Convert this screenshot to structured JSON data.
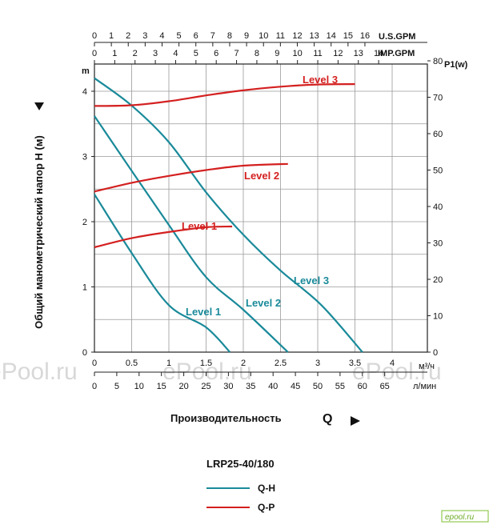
{
  "chart_data": {
    "type": "line",
    "title": "LRP25-40/180",
    "ylabel": "Общий манометрический напор Н (м)",
    "ylabel_unit": "m",
    "y2label": "P1(w)",
    "xlabel": "Производительность",
    "xlabel_symbol": "Q",
    "x_unit_bottom1": "м³/ч",
    "x_unit_bottom2": "л/мин",
    "x_unit_top1": "U.S.GPM",
    "x_unit_top2": "IMP.GPM",
    "xlim": [
      0,
      4.5
    ],
    "ylim": [
      0,
      4.25
    ],
    "y2lim": [
      0,
      80
    ],
    "grid": true,
    "ticks": {
      "m3h": [
        "0",
        "0.5",
        "1",
        "1.5",
        "2",
        "2.5",
        "3",
        "3.5",
        "4"
      ],
      "m3h_values": [
        0,
        0.5,
        1,
        1.5,
        2,
        2.5,
        3,
        3.5,
        4
      ],
      "lmin": [
        "0",
        "5",
        "10",
        "15",
        "20",
        "25",
        "30",
        "35",
        "40",
        "45",
        "50",
        "55",
        "60",
        "65"
      ],
      "lmin_values": [
        0,
        5,
        10,
        15,
        20,
        25,
        30,
        35,
        40,
        45,
        50,
        55,
        60,
        65
      ],
      "usgpm": [
        "0",
        "1",
        "2",
        "3",
        "4",
        "5",
        "6",
        "7",
        "8",
        "9",
        "10",
        "11",
        "12",
        "13",
        "14",
        "15",
        "16"
      ],
      "usgpm_values": [
        0,
        1,
        2,
        3,
        4,
        5,
        6,
        7,
        8,
        9,
        10,
        11,
        12,
        13,
        14,
        15,
        16
      ],
      "impgpm": [
        "0",
        "1",
        "2",
        "3",
        "4",
        "5",
        "6",
        "7",
        "8",
        "9",
        "10",
        "11",
        "12",
        "13",
        "14"
      ],
      "impgpm_values": [
        0,
        1,
        2,
        3,
        4,
        5,
        6,
        7,
        8,
        9,
        10,
        11,
        12,
        13,
        14
      ],
      "head": [
        "0",
        "1",
        "2",
        "3",
        "4"
      ],
      "head_values": [
        0,
        1,
        2,
        3,
        4
      ],
      "power": [
        "0",
        "10",
        "20",
        "30",
        "40",
        "50",
        "60",
        "70",
        "80"
      ],
      "power_values": [
        0,
        10,
        20,
        30,
        40,
        50,
        60,
        70,
        80
      ]
    },
    "qh_series": [
      {
        "name": "Level 1",
        "points": [
          [
            0,
            2.42
          ],
          [
            0.5,
            1.52
          ],
          [
            1.0,
            0.72
          ],
          [
            1.5,
            0.38
          ],
          [
            1.82,
            0.0
          ]
        ]
      },
      {
        "name": "Level 2",
        "points": [
          [
            0,
            3.62
          ],
          [
            0.5,
            2.78
          ],
          [
            1.0,
            1.95
          ],
          [
            1.5,
            1.15
          ],
          [
            2.0,
            0.65
          ],
          [
            2.6,
            0.0
          ]
        ]
      },
      {
        "name": "Level 3",
        "points": [
          [
            0,
            4.2
          ],
          [
            0.5,
            3.78
          ],
          [
            1.0,
            3.22
          ],
          [
            1.5,
            2.45
          ],
          [
            2.0,
            1.8
          ],
          [
            2.5,
            1.25
          ],
          [
            3.05,
            0.72
          ],
          [
            3.6,
            0.0
          ]
        ]
      }
    ],
    "qp_series": [
      {
        "name": "Level 1",
        "points": [
          [
            0,
            28.8
          ],
          [
            0.5,
            31.3
          ],
          [
            1.0,
            33.0
          ],
          [
            1.5,
            34.3
          ],
          [
            1.85,
            34.5
          ]
        ]
      },
      {
        "name": "Level 2",
        "points": [
          [
            0,
            44.1
          ],
          [
            0.5,
            46.5
          ],
          [
            1.0,
            48.4
          ],
          [
            1.5,
            50.0
          ],
          [
            2.0,
            51.2
          ],
          [
            2.6,
            51.7
          ]
        ]
      },
      {
        "name": "Level 3",
        "points": [
          [
            0,
            67.6
          ],
          [
            0.5,
            67.8
          ],
          [
            1.0,
            68.9
          ],
          [
            1.5,
            70.5
          ],
          [
            2.0,
            71.9
          ],
          [
            2.5,
            72.9
          ],
          [
            3.0,
            73.5
          ],
          [
            3.5,
            73.6
          ]
        ]
      }
    ],
    "colors": {
      "qh": "#1a8a9a",
      "qp": "#d42020"
    },
    "legend": [
      {
        "label": "Q-H",
        "color": "#1a8a9a"
      },
      {
        "label": "Q-P",
        "color": "#d42020"
      }
    ],
    "legend_placement": "bottom",
    "watermark": "ePool.ru",
    "logo_text": "epool.ru"
  }
}
